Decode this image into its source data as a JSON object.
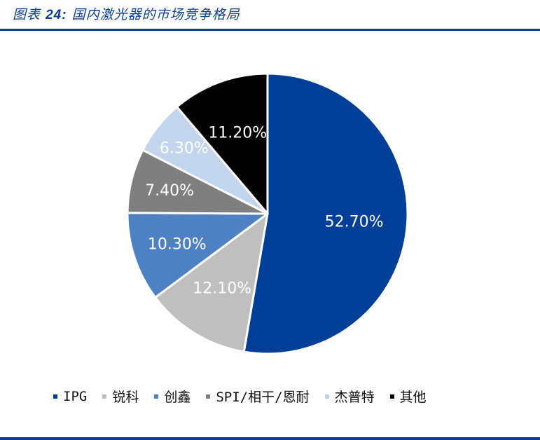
{
  "header": {
    "title_prefix": "图表",
    "title_number": "24:",
    "title_text": "国内激光器的市场竞争格局"
  },
  "chart_data": {
    "type": "pie",
    "title": "国内激光器的市场竞争格局",
    "categories": [
      "IPG",
      "锐科",
      "创鑫",
      "SPI/相干/恩耐",
      "杰普特",
      "其他"
    ],
    "values": [
      52.7,
      12.1,
      10.3,
      7.4,
      6.3,
      11.2
    ],
    "labels": [
      "52.70%",
      "12.10%",
      "10.30%",
      "7.40%",
      "6.30%",
      "11.20%"
    ],
    "colors": [
      "#003f98",
      "#bfbfbf",
      "#4e81c4",
      "#7f7f7f",
      "#c3d5ec",
      "#000000"
    ],
    "start_angle": "12 o'clock, clockwise",
    "legend_position": "bottom"
  },
  "legend": {
    "items": [
      {
        "label": "IPG",
        "color": "#003f98"
      },
      {
        "label": "锐科",
        "color": "#bfbfbf"
      },
      {
        "label": "创鑫",
        "color": "#4e81c4"
      },
      {
        "label": "SPI/相干/恩耐",
        "color": "#7f7f7f"
      },
      {
        "label": "杰普特",
        "color": "#c3d5ec"
      },
      {
        "label": "其他",
        "color": "#000000"
      }
    ]
  }
}
